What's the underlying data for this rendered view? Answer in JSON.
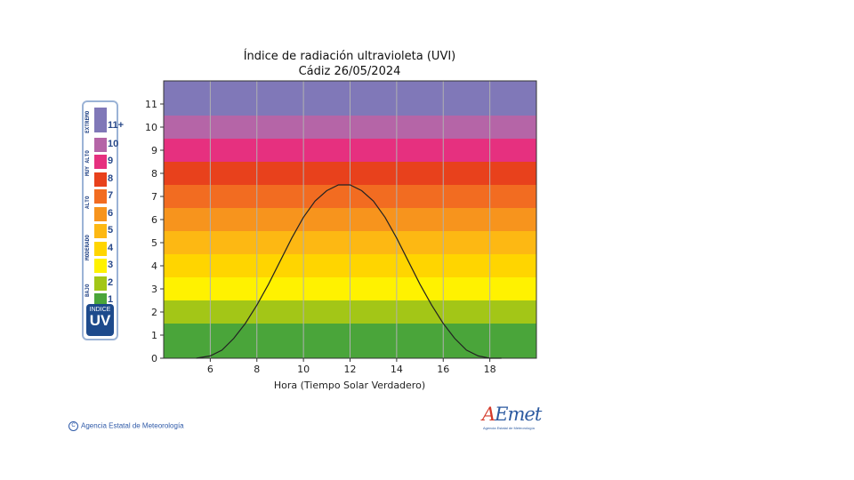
{
  "chart_data": {
    "type": "line",
    "title": "Índice de radiación ultravioleta (UVI)",
    "subtitle": "Cádiz 26/05/2024",
    "xlabel": "Hora (Tiempo Solar Verdadero)",
    "ylabel": "",
    "xlim": [
      4,
      20
    ],
    "ylim": [
      0,
      12
    ],
    "x_ticks": [
      6,
      8,
      10,
      12,
      14,
      16,
      18
    ],
    "y_ticks": [
      0,
      1,
      2,
      3,
      4,
      5,
      6,
      7,
      8,
      9,
      10,
      11
    ],
    "grid": "vertical",
    "bands": [
      {
        "from": 0,
        "to": 1.5,
        "color": "#4aa53a"
      },
      {
        "from": 1.5,
        "to": 2.5,
        "color": "#a3c617"
      },
      {
        "from": 2.5,
        "to": 3.5,
        "color": "#fff200"
      },
      {
        "from": 3.5,
        "to": 4.5,
        "color": "#ffd500"
      },
      {
        "from": 4.5,
        "to": 5.5,
        "color": "#fdb813"
      },
      {
        "from": 5.5,
        "to": 6.5,
        "color": "#f7941d"
      },
      {
        "from": 6.5,
        "to": 7.5,
        "color": "#f26c21"
      },
      {
        "from": 7.5,
        "to": 8.5,
        "color": "#e8411c"
      },
      {
        "from": 8.5,
        "to": 9.5,
        "color": "#e6307f"
      },
      {
        "from": 9.5,
        "to": 10.5,
        "color": "#b565a7"
      },
      {
        "from": 10.5,
        "to": 12,
        "color": "#8078b8"
      }
    ],
    "series": [
      {
        "color": "#222222",
        "x": [
          5.4,
          6.0,
          6.5,
          7.0,
          7.5,
          8.0,
          8.5,
          9.0,
          9.5,
          10.0,
          10.5,
          11.0,
          11.5,
          12.0,
          12.5,
          13.0,
          13.5,
          14.0,
          14.5,
          15.0,
          15.5,
          16.0,
          16.5,
          17.0,
          17.5,
          18.0,
          18.5
        ],
        "y": [
          0.0,
          0.1,
          0.35,
          0.85,
          1.5,
          2.3,
          3.2,
          4.2,
          5.2,
          6.1,
          6.8,
          7.25,
          7.5,
          7.5,
          7.25,
          6.8,
          6.1,
          5.2,
          4.2,
          3.2,
          2.3,
          1.5,
          0.85,
          0.35,
          0.1,
          0.0,
          0.0
        ]
      }
    ]
  },
  "legend": {
    "categories": [
      {
        "label": "EXTREMO",
        "color": "#2a4a8a"
      },
      {
        "label": "MUY ALTO",
        "color": "#2a4a8a"
      },
      {
        "label": "ALTO",
        "color": "#2a4a8a"
      },
      {
        "label": "MODERADO",
        "color": "#2a4a8a"
      },
      {
        "label": "BAJO",
        "color": "#2a4a8a"
      }
    ],
    "levels": [
      {
        "num": "11+",
        "color": "#8078b8"
      },
      {
        "num": "10",
        "color": "#b565a7"
      },
      {
        "num": "9",
        "color": "#e6307f"
      },
      {
        "num": "8",
        "color": "#e8411c"
      },
      {
        "num": "7",
        "color": "#f26c21"
      },
      {
        "num": "6",
        "color": "#f7941d"
      },
      {
        "num": "5",
        "color": "#fdb813"
      },
      {
        "num": "4",
        "color": "#ffd500"
      },
      {
        "num": "3",
        "color": "#fff200"
      },
      {
        "num": "2",
        "color": "#a3c617"
      },
      {
        "num": "1",
        "color": "#4aa53a"
      }
    ],
    "badge_top": "INDICE",
    "badge_main": "UV"
  },
  "footer": {
    "copyright_symbol": "C",
    "copyright": "Agencia Estatal de Meteorología",
    "logo_a": "A",
    "logo_rest": "Emet",
    "logo_sub": "Agencia Estatal de Meteorología"
  }
}
